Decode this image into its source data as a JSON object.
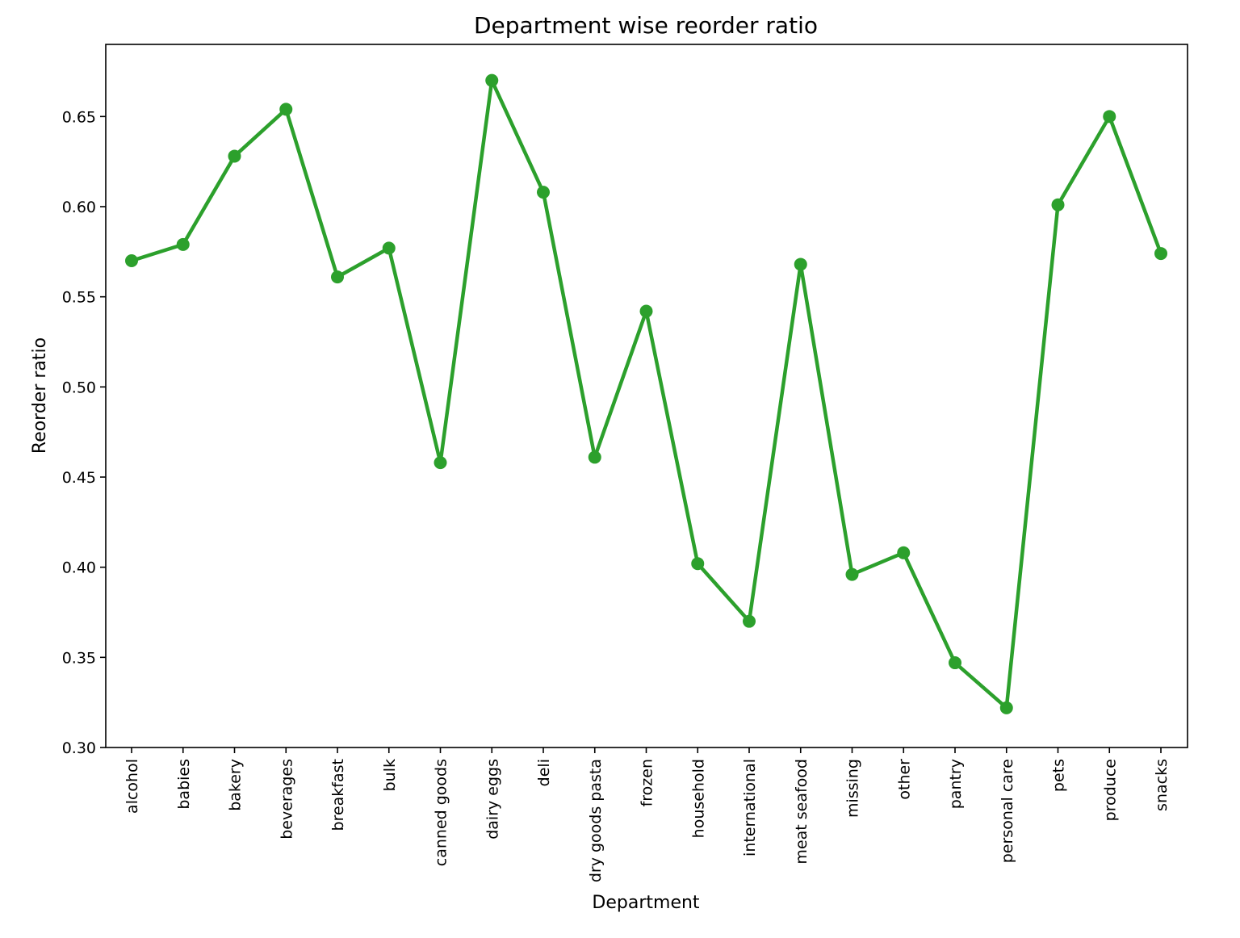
{
  "chart_data": {
    "type": "line",
    "title": "Department wise reorder ratio",
    "xlabel": "Department",
    "ylabel": "Reorder ratio",
    "categories": [
      "alcohol",
      "babies",
      "bakery",
      "beverages",
      "breakfast",
      "bulk",
      "canned goods",
      "dairy eggs",
      "deli",
      "dry goods pasta",
      "frozen",
      "household",
      "international",
      "meat seafood",
      "missing",
      "other",
      "pantry",
      "personal care",
      "pets",
      "produce",
      "snacks"
    ],
    "series": [
      {
        "values": [
          0.57,
          0.579,
          0.628,
          0.654,
          0.561,
          0.577,
          0.458,
          0.67,
          0.608,
          0.461,
          0.542,
          0.402,
          0.37,
          0.568,
          0.396,
          0.408,
          0.347,
          0.322,
          0.601,
          0.65,
          0.574
        ]
      }
    ],
    "ylim": [
      0.3,
      0.69
    ],
    "yticks": [
      "0.30",
      "0.35",
      "0.40",
      "0.45",
      "0.50",
      "0.55",
      "0.60",
      "0.65"
    ],
    "grid": false,
    "colors": {
      "line": "#2ca02c",
      "marker": "#2ca02c"
    }
  }
}
